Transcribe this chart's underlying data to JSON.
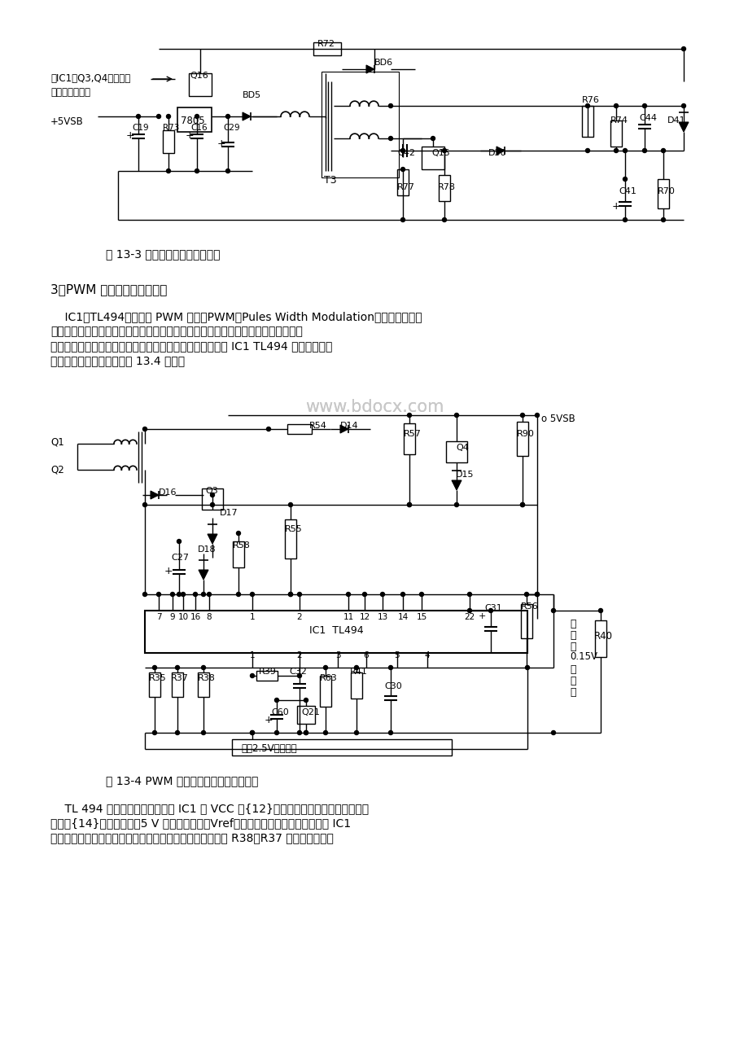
{
  "bg_color": "#ffffff",
  "page_width": 9.2,
  "page_height": 13.02,
  "fig13_3_caption": "图 13-3 直流辅助电源单元电路图",
  "section_heading": "3、PWM 脉宽调制及推动电路",
  "p1l1": "    IC1（TL494）等组成 PWM 电路。PWM（Pules Width Modulation）即脉宽调制电",
  "p1l2": "路，其功能是检测输出直流电压，与基准电压比较，进行放大，控制振荡器的脉冲宽",
  "p1l3": "度，从而控制推挽开关电路以保持输出电压的稳定，主要由 IC1 TL494 及周围元件组",
  "p1l4": "成。其单元电路原理如下图 13.4 所示：",
  "fig13_4_caption": "图 13-4 PWM 脉宽调制及推动单元电路图",
  "p2l1": "    TL 494 的简单工作原理是：当 IC1 的 VCC 端{12}脚得电后，内部基准电源即从其",
  "p2l2": "输出端{14}脚向外提供＋5 V 参考基准电压（Vref）。首先，该参考电压分两路为 IC1",
  "p2l3": "组件的各控制端建立起它们各自的参考基准电平：一路经由 R38、R37 组成的分压器为",
  "watermark": "www.bdocx.com",
  "text_color": "#000000"
}
